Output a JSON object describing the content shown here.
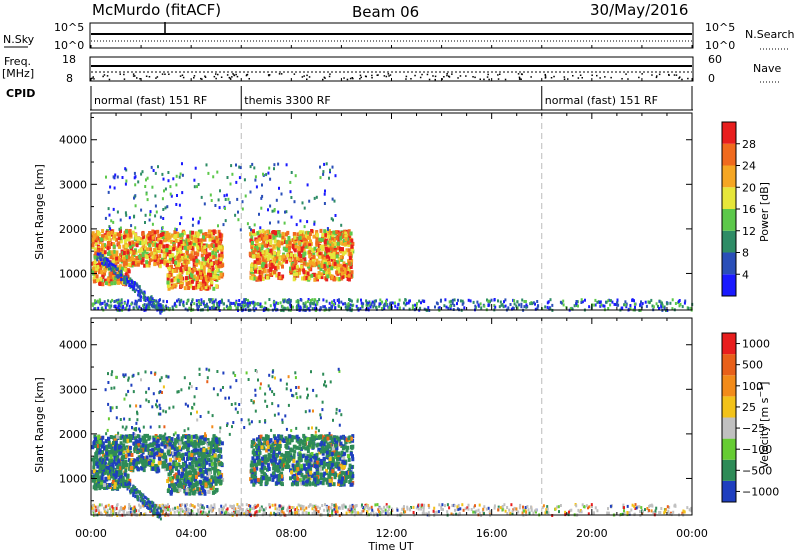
{
  "header": {
    "station": "McMurdo (fitACF)",
    "beam": "Beam 06",
    "date": "30/May/2016"
  },
  "strip": {
    "nsky_label": "N.Sky",
    "nsearch_label": "N.Search",
    "freq_label": "Freq.",
    "freq_unit": "[MHz]",
    "nave_label": "Nave",
    "cpid_label": "CPID",
    "left_ticks_top": [
      "10^5",
      "10^0"
    ],
    "right_ticks_top": [
      "10^5",
      "10^0"
    ],
    "left_ticks_freq": [
      "18",
      "8"
    ],
    "right_ticks_nave": [
      "60",
      "0"
    ],
    "cpid_segments": [
      {
        "label": "normal (fast) 151 RF",
        "start_hour": 0.0,
        "end_hour": 6.0
      },
      {
        "label": "themis 3300 RF",
        "start_hour": 6.0,
        "end_hour": 18.0
      },
      {
        "label": "normal (fast) 151 RF",
        "start_hour": 18.0,
        "end_hour": 24.0
      }
    ]
  },
  "panels": {
    "ylabel": "Slant Range [km]",
    "xlabel": "Time UT",
    "yticks": [
      "1000",
      "2000",
      "3000",
      "4000"
    ],
    "xticks": [
      "00:00",
      "04:00",
      "08:00",
      "12:00",
      "16:00",
      "20:00",
      "00:00"
    ]
  },
  "chart_data": [
    {
      "type": "heatmap",
      "title": "",
      "xlabel": "Time UT",
      "ylabel": "Slant Range [km]",
      "x_range_hours": [
        0,
        24
      ],
      "ylim": [
        180,
        4600
      ],
      "colorbar": {
        "label": "Power [dB]",
        "ticks": [
          "4",
          "8",
          "12",
          "16",
          "20",
          "24",
          "28"
        ],
        "colors": [
          "#1a1aff",
          "#2a4fb8",
          "#2e8c66",
          "#5cc84a",
          "#e6e63a",
          "#f5a623",
          "#f06a1e",
          "#e81e1e"
        ]
      },
      "regions": [
        {
          "name": "main echo",
          "hours": [
            0.0,
            10.4
          ],
          "range_km": [
            700,
            2000
          ],
          "level": "high"
        },
        {
          "name": "upper scatter",
          "hours": [
            0.5,
            10.0
          ],
          "range_km": [
            2000,
            3500
          ],
          "level": "low"
        },
        {
          "name": "near-range band",
          "hours": [
            0.0,
            24.0
          ],
          "range_km": [
            200,
            450
          ],
          "level": "low"
        }
      ]
    },
    {
      "type": "heatmap",
      "title": "",
      "xlabel": "Time UT",
      "ylabel": "Slant Range [km]",
      "x_range_hours": [
        0,
        24
      ],
      "ylim": [
        180,
        4600
      ],
      "colorbar": {
        "label": "Velocity [m s^-1]",
        "ticks": [
          "1000",
          "500",
          "100",
          "25",
          "−25",
          "−100",
          "−500",
          "−1000"
        ],
        "colors": [
          "#1f3fbf",
          "#2e8b57",
          "#66cc33",
          "#c0c0c0",
          "#f2c21a",
          "#f28b1a",
          "#e8601a",
          "#e81e1e"
        ]
      },
      "regions": [
        {
          "name": "main echo",
          "hours": [
            0.0,
            10.4
          ],
          "range_km": [
            700,
            2000
          ],
          "level": "mixed"
        },
        {
          "name": "upper scatter",
          "hours": [
            0.5,
            10.0
          ],
          "range_km": [
            2000,
            3500
          ],
          "level": "mixed"
        },
        {
          "name": "near-range band",
          "hours": [
            0.0,
            24.0
          ],
          "range_km": [
            200,
            450
          ],
          "level": "ground"
        }
      ]
    }
  ]
}
